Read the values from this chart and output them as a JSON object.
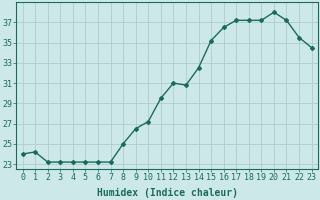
{
  "x": [
    0,
    1,
    2,
    3,
    4,
    5,
    6,
    7,
    8,
    9,
    10,
    11,
    12,
    13,
    14,
    15,
    16,
    17,
    18,
    19,
    20,
    21,
    22,
    23
  ],
  "y": [
    24.0,
    24.2,
    23.2,
    23.2,
    23.2,
    23.2,
    23.2,
    23.2,
    25.0,
    26.5,
    27.2,
    29.5,
    31.0,
    30.8,
    32.5,
    35.2,
    36.5,
    37.2,
    37.2,
    37.2,
    38.0,
    37.2,
    35.5,
    34.5
  ],
  "line_color": "#1a6b5e",
  "marker": "D",
  "marker_size": 2.0,
  "bg_color": "#cde8e8",
  "grid_color": "#b0cccc",
  "xlabel": "Humidex (Indice chaleur)",
  "ylabel": "",
  "ylim": [
    22.5,
    39
  ],
  "yticks": [
    23,
    25,
    27,
    29,
    31,
    33,
    35,
    37
  ],
  "xlim": [
    -0.5,
    23.5
  ],
  "tick_color": "#1a6b5e",
  "tick_fontsize": 6,
  "xlabel_fontsize": 7,
  "line_width": 1.0
}
